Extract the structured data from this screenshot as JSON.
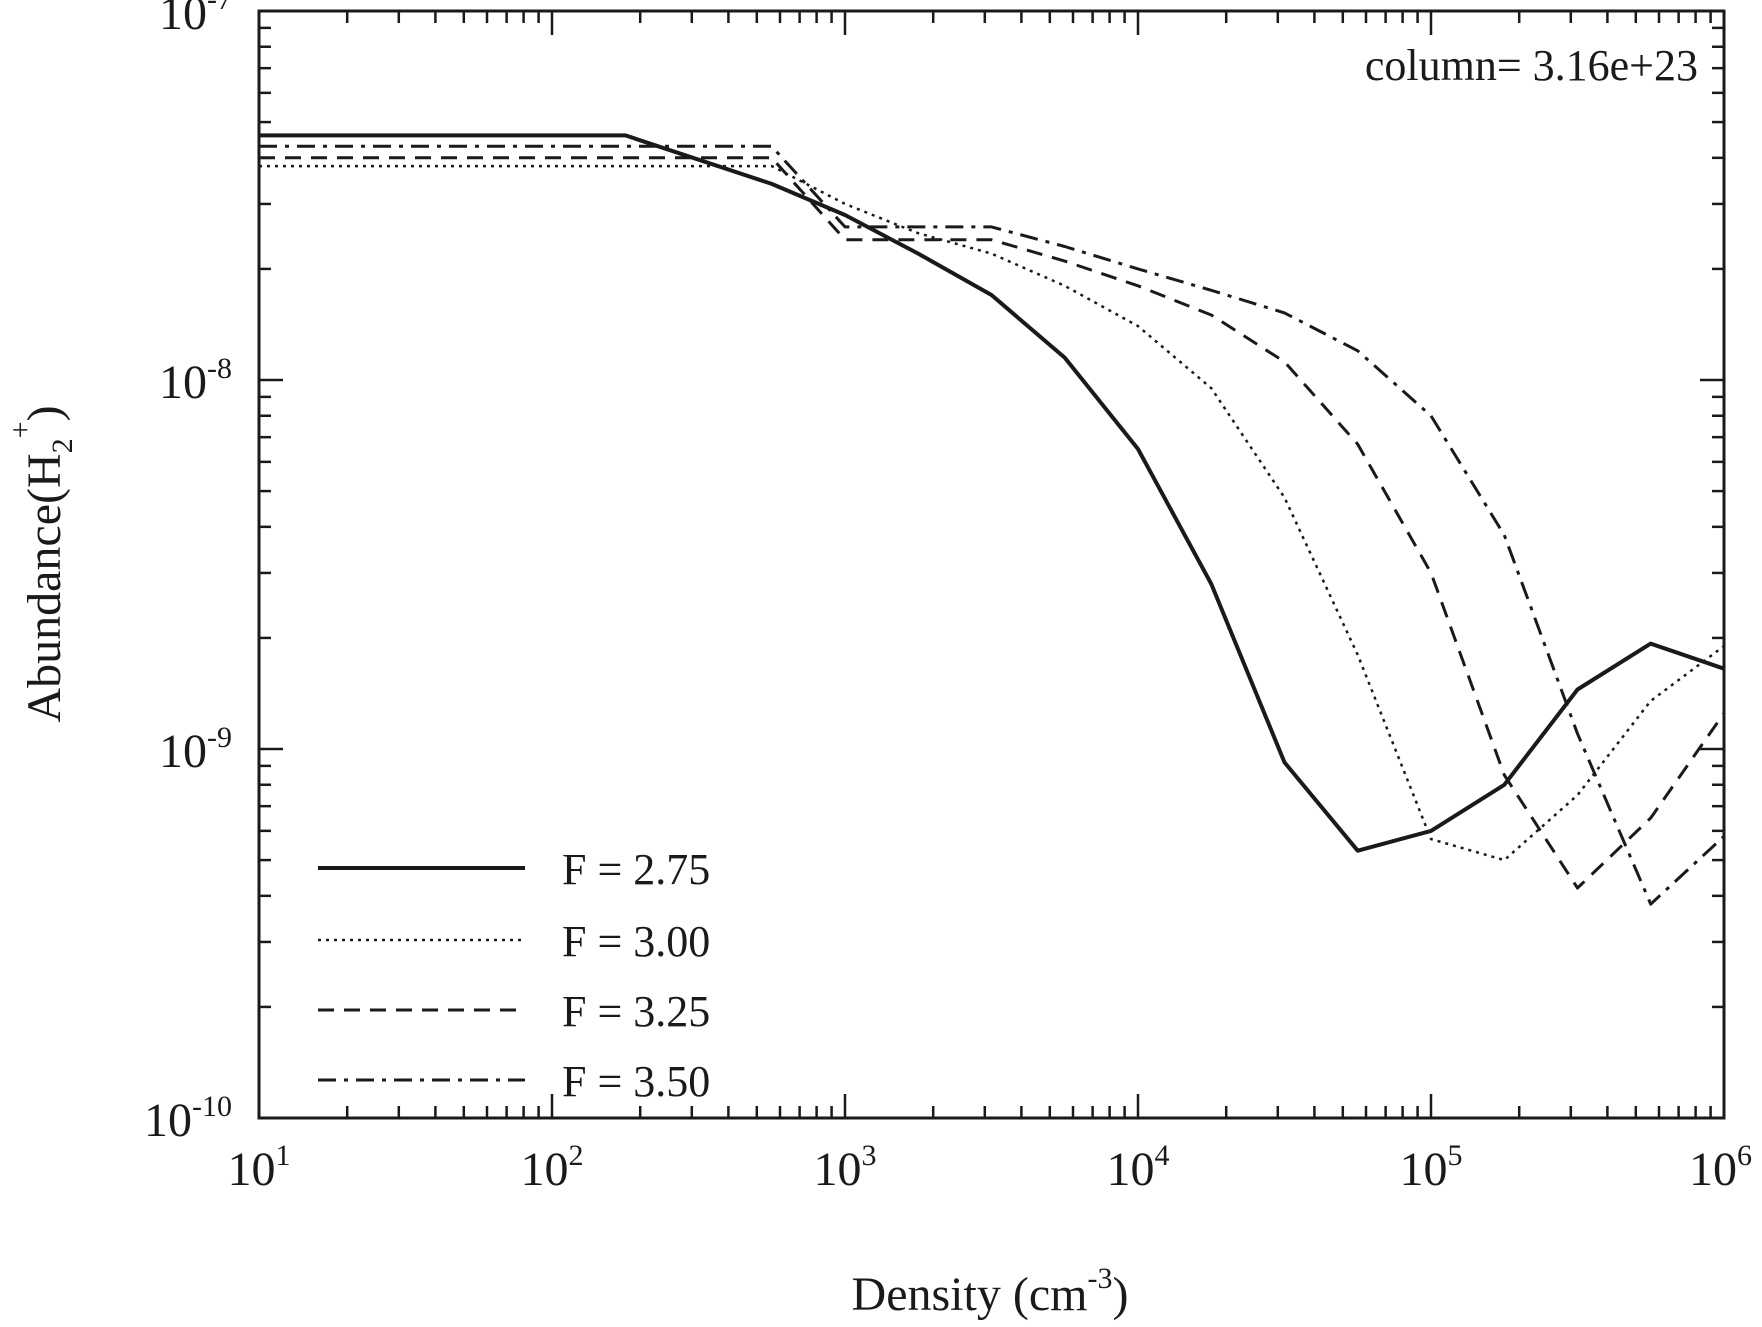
{
  "chart_data": {
    "type": "line",
    "title": "",
    "xlabel": "Density (cm",
    "xlabel_sup": "-3",
    "xlabel_close": ")",
    "ylabel": "Abundance(H",
    "ylabel_sub": "2",
    "ylabel_sup": "+",
    "ylabel_close": ")",
    "xscale": "log",
    "yscale": "log",
    "xlim": [
      10,
      1000000
    ],
    "ylim": [
      1e-10,
      1e-07
    ],
    "x_ticks": [
      {
        "value": 10,
        "base": "10",
        "exp": "1"
      },
      {
        "value": 100,
        "base": "10",
        "exp": "2"
      },
      {
        "value": 1000,
        "base": "10",
        "exp": "3"
      },
      {
        "value": 10000,
        "base": "10",
        "exp": "4"
      },
      {
        "value": 100000,
        "base": "10",
        "exp": "5"
      },
      {
        "value": 1000000,
        "base": "10",
        "exp": "6"
      }
    ],
    "y_ticks": [
      {
        "value": 1e-10,
        "base": "10",
        "exp": "-10"
      },
      {
        "value": 1e-09,
        "base": "10",
        "exp": "-9"
      },
      {
        "value": 1e-08,
        "base": "10",
        "exp": "-8"
      },
      {
        "value": 1e-07,
        "base": "10",
        "exp": "-7"
      }
    ],
    "annotation": "column= 3.16e+23",
    "legend_position": "bottom-left",
    "series": [
      {
        "name": "F = 2.75",
        "style": "solid",
        "x": [
          10,
          178,
          562,
          1000,
          1778,
          3162,
          5623,
          10000,
          17783,
          31623,
          56234,
          100000,
          177828,
          316228,
          562341,
          1000000
        ],
        "y": [
          4.6e-08,
          4.6e-08,
          3.4e-08,
          2.8e-08,
          2.2e-08,
          1.7e-08,
          1.15e-08,
          6.5e-09,
          2.8e-09,
          9.2e-10,
          5.3e-10,
          6e-10,
          8e-10,
          1.45e-09,
          1.93e-09,
          1.65e-09
        ]
      },
      {
        "name": "F = 3.00",
        "style": "dotted",
        "x": [
          10,
          178,
          562,
          1000,
          1778,
          3162,
          5623,
          10000,
          17783,
          31623,
          56234,
          100000,
          177828,
          316228,
          562341,
          1000000
        ],
        "y": [
          3.8e-08,
          3.8e-08,
          3.8e-08,
          3e-08,
          2.5e-08,
          2.2e-08,
          1.8e-08,
          1.4e-08,
          9.5e-09,
          4.8e-09,
          1.8e-09,
          5.7e-10,
          5e-10,
          7.5e-10,
          1.35e-09,
          1.9e-09
        ]
      },
      {
        "name": "F = 3.25",
        "style": "dashed",
        "x": [
          10,
          178,
          562,
          1000,
          1778,
          3162,
          5623,
          10000,
          17783,
          31623,
          56234,
          100000,
          177828,
          316228,
          562341,
          1000000
        ],
        "y": [
          4e-08,
          4e-08,
          4e-08,
          2.4e-08,
          2.4e-08,
          2.4e-08,
          2.1e-08,
          1.8e-08,
          1.5e-08,
          1.12e-08,
          6.7e-09,
          3e-09,
          8.5e-10,
          4.2e-10,
          6.5e-10,
          1.25e-09
        ]
      },
      {
        "name": "F = 3.50",
        "style": "dashdot",
        "x": [
          10,
          178,
          562,
          1000,
          1778,
          3162,
          5623,
          10000,
          17783,
          31623,
          56234,
          100000,
          177828,
          316228,
          562341,
          1000000
        ],
        "y": [
          4.3e-08,
          4.3e-08,
          4.3e-08,
          2.6e-08,
          2.6e-08,
          2.6e-08,
          2.3e-08,
          2e-08,
          1.75e-08,
          1.52e-08,
          1.2e-08,
          8e-09,
          3.8e-09,
          1.1e-09,
          3.8e-10,
          5.8e-10
        ]
      }
    ]
  },
  "colors": {
    "ink": "#1a1a1a",
    "background": "#ffffff"
  }
}
